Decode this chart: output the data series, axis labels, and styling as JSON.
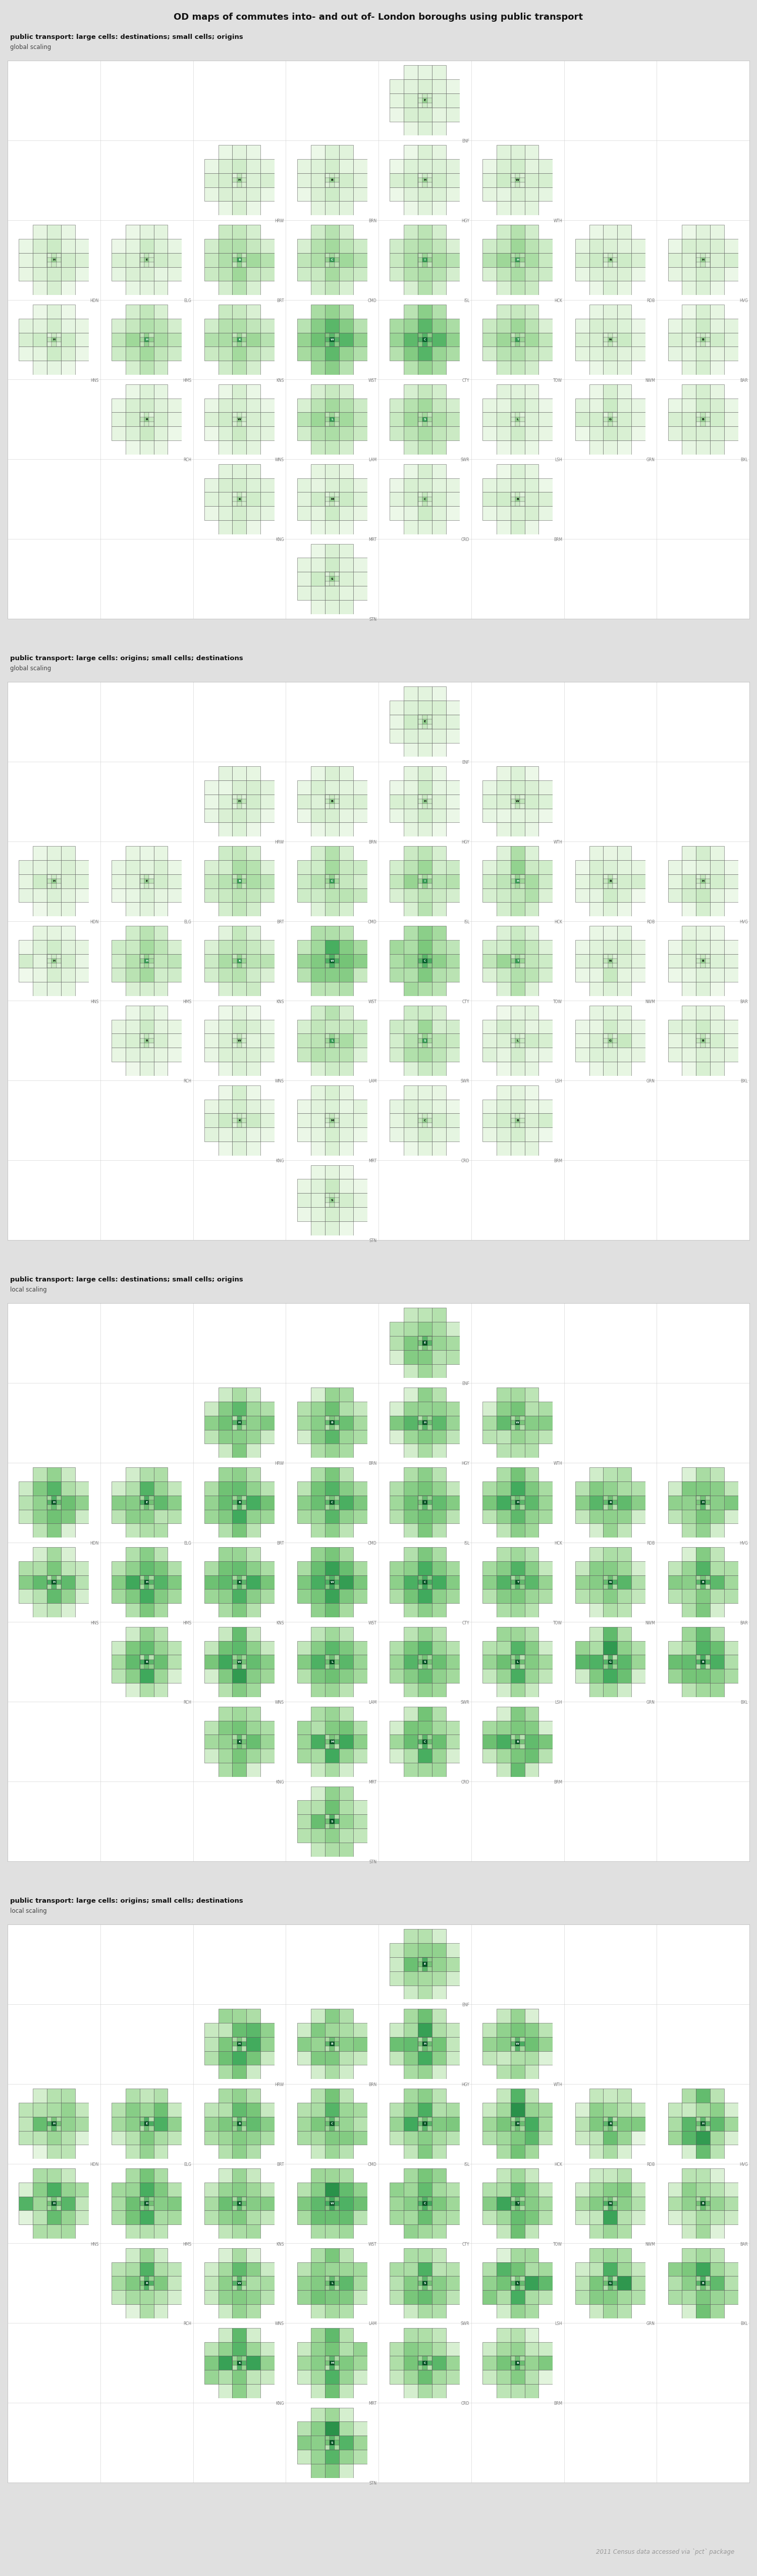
{
  "title": "OD maps of commutes into- and out of- London boroughs using public transport",
  "subtitle_note": "2011 Census data accessed via `pct` package",
  "background_color": "#e0e0e0",
  "panel_bg": "#ffffff",
  "grid_line_color": "#aaaaaa",
  "sections": [
    {
      "label": "public transport: large cells: destinations; small cells; origins",
      "sublabel": "global scaling"
    },
    {
      "label": "public transport: large cells: origins; small cells; destinations",
      "sublabel": "global scaling"
    },
    {
      "label": "public transport: large cells: destinations; small cells; origins",
      "sublabel": "local scaling"
    },
    {
      "label": "public transport: large cells: origins; small cells; destinations",
      "sublabel": "local scaling"
    }
  ],
  "boroughs": [
    {
      "code": "ENF",
      "row": 0,
      "col": 4
    },
    {
      "code": "HRW",
      "row": 1,
      "col": 2
    },
    {
      "code": "BRN",
      "row": 1,
      "col": 3
    },
    {
      "code": "HGY",
      "row": 1,
      "col": 4
    },
    {
      "code": "WTH",
      "row": 1,
      "col": 5
    },
    {
      "code": "HDN",
      "row": 2,
      "col": 0
    },
    {
      "code": "ELG",
      "row": 2,
      "col": 1
    },
    {
      "code": "BRT",
      "row": 2,
      "col": 2
    },
    {
      "code": "CMD",
      "row": 2,
      "col": 3
    },
    {
      "code": "ISL",
      "row": 2,
      "col": 4
    },
    {
      "code": "HCK",
      "row": 2,
      "col": 5
    },
    {
      "code": "RDB",
      "row": 2,
      "col": 6
    },
    {
      "code": "HVG",
      "row": 2,
      "col": 7
    },
    {
      "code": "HNS",
      "row": 3,
      "col": 0
    },
    {
      "code": "HMS",
      "row": 3,
      "col": 1
    },
    {
      "code": "KNS",
      "row": 3,
      "col": 2
    },
    {
      "code": "WST",
      "row": 3,
      "col": 3
    },
    {
      "code": "CTY",
      "row": 3,
      "col": 4
    },
    {
      "code": "TOW",
      "row": 3,
      "col": 5
    },
    {
      "code": "NWM",
      "row": 3,
      "col": 6
    },
    {
      "code": "BAR",
      "row": 3,
      "col": 7
    },
    {
      "code": "RCH",
      "row": 4,
      "col": 1
    },
    {
      "code": "WNS",
      "row": 4,
      "col": 2
    },
    {
      "code": "LAM",
      "row": 4,
      "col": 3
    },
    {
      "code": "SWR",
      "row": 4,
      "col": 4
    },
    {
      "code": "LSH",
      "row": 4,
      "col": 5
    },
    {
      "code": "GRN",
      "row": 4,
      "col": 6
    },
    {
      "code": "BXL",
      "row": 4,
      "col": 7
    },
    {
      "code": "KNG",
      "row": 5,
      "col": 2
    },
    {
      "code": "MRT",
      "row": 5,
      "col": 3
    },
    {
      "code": "CRD",
      "row": 5,
      "col": 4
    },
    {
      "code": "BRM",
      "row": 5,
      "col": 5
    },
    {
      "code": "STN",
      "row": 6,
      "col": 3
    }
  ],
  "n_rows": 7,
  "n_cols": 8
}
